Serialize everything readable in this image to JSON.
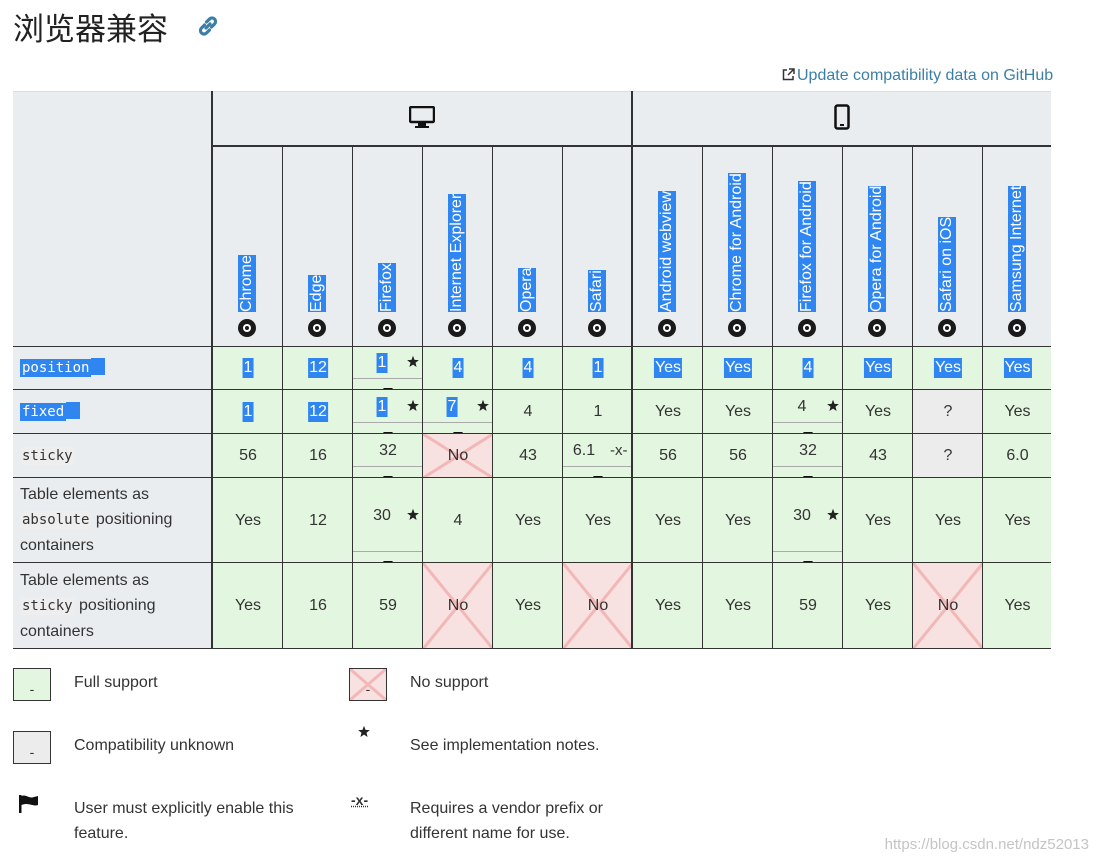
{
  "title": "浏览器兼容",
  "github_link": "Update compatibility data on GitHub",
  "browsers": [
    "Chrome",
    "Edge",
    "Firefox",
    "Internet Explorer",
    "Opera",
    "Safari",
    "Android webview",
    "Chrome for Android",
    "Firefox for Android",
    "Opera for Android",
    "Safari on iOS",
    "Samsung Internet"
  ],
  "rows": [
    {
      "feature": {
        "code": "position"
      },
      "cells": [
        {
          "text": "1",
          "support": "full"
        },
        {
          "text": "12",
          "support": "full"
        },
        {
          "text": "1",
          "support": "full",
          "notes": true,
          "more": true
        },
        {
          "text": "4",
          "support": "full"
        },
        {
          "text": "4",
          "support": "full"
        },
        {
          "text": "1",
          "support": "full"
        },
        {
          "text": "Yes",
          "support": "full"
        },
        {
          "text": "Yes",
          "support": "full"
        },
        {
          "text": "4",
          "support": "full"
        },
        {
          "text": "Yes",
          "support": "full"
        },
        {
          "text": "Yes",
          "support": "full"
        },
        {
          "text": "Yes",
          "support": "full"
        }
      ]
    },
    {
      "feature": {
        "code": "fixed"
      },
      "cells": [
        {
          "text": "1",
          "support": "full"
        },
        {
          "text": "12",
          "support": "full"
        },
        {
          "text": "1",
          "support": "full",
          "notes": true,
          "more": true
        },
        {
          "text": "7",
          "support": "full",
          "notes": true,
          "more": true
        },
        {
          "text": "4",
          "support": "full"
        },
        {
          "text": "1",
          "support": "full"
        },
        {
          "text": "Yes",
          "support": "full"
        },
        {
          "text": "Yes",
          "support": "full"
        },
        {
          "text": "4",
          "support": "full",
          "notes": true,
          "more": true
        },
        {
          "text": "Yes",
          "support": "full"
        },
        {
          "text": "?",
          "support": "unknown"
        },
        {
          "text": "Yes",
          "support": "full"
        }
      ]
    },
    {
      "feature": {
        "code": "sticky"
      },
      "cells": [
        {
          "text": "56",
          "support": "full"
        },
        {
          "text": "16",
          "support": "full"
        },
        {
          "text": "32",
          "support": "full",
          "more": true
        },
        {
          "text": "No",
          "support": "none"
        },
        {
          "text": "43",
          "support": "full"
        },
        {
          "text": "6.1",
          "support": "full",
          "prefix": "-x-",
          "more": true
        },
        {
          "text": "56",
          "support": "full"
        },
        {
          "text": "56",
          "support": "full"
        },
        {
          "text": "32",
          "support": "full",
          "more": true
        },
        {
          "text": "43",
          "support": "full"
        },
        {
          "text": "?",
          "support": "unknown"
        },
        {
          "text": "6.0",
          "support": "full"
        }
      ]
    },
    {
      "feature": {
        "before": "Table elements as",
        "code": "absolute",
        "after": "positioning containers"
      },
      "cells": [
        {
          "text": "Yes",
          "support": "full"
        },
        {
          "text": "12",
          "support": "full"
        },
        {
          "text": "30",
          "support": "full",
          "notes": true,
          "more": true
        },
        {
          "text": "4",
          "support": "full"
        },
        {
          "text": "Yes",
          "support": "full"
        },
        {
          "text": "Yes",
          "support": "full"
        },
        {
          "text": "Yes",
          "support": "full"
        },
        {
          "text": "Yes",
          "support": "full"
        },
        {
          "text": "30",
          "support": "full",
          "notes": true,
          "more": true
        },
        {
          "text": "Yes",
          "support": "full"
        },
        {
          "text": "Yes",
          "support": "full"
        },
        {
          "text": "Yes",
          "support": "full"
        }
      ]
    },
    {
      "feature": {
        "before": "Table elements as",
        "code": "sticky",
        "after": "positioning containers"
      },
      "cells": [
        {
          "text": "Yes",
          "support": "full"
        },
        {
          "text": "16",
          "support": "full"
        },
        {
          "text": "59",
          "support": "full"
        },
        {
          "text": "No",
          "support": "none"
        },
        {
          "text": "Yes",
          "support": "full"
        },
        {
          "text": "No",
          "support": "none"
        },
        {
          "text": "Yes",
          "support": "full"
        },
        {
          "text": "Yes",
          "support": "full"
        },
        {
          "text": "59",
          "support": "full"
        },
        {
          "text": "Yes",
          "support": "full"
        },
        {
          "text": "No",
          "support": "none"
        },
        {
          "text": "Yes",
          "support": "full"
        }
      ]
    }
  ],
  "legend": [
    {
      "swatch": "-",
      "support": "full",
      "label": "Full support"
    },
    {
      "swatch": "-",
      "support": "none",
      "label": "No support"
    },
    {
      "swatch": "-",
      "support": "unknown",
      "label": "Compatibility unknown"
    },
    {
      "icon": "notes",
      "label": "See implementation notes."
    },
    {
      "icon": "flag",
      "label": "User must explicitly enable this feature."
    },
    {
      "icon_text": "-x-",
      "label": "Requires a vendor prefix or different name for use."
    }
  ],
  "watermark": "https://blog.csdn.net/ndz52013"
}
